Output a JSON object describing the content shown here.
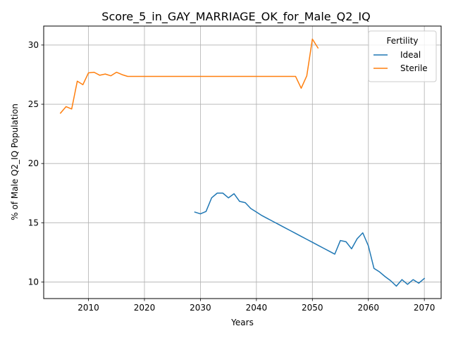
{
  "chart_data": {
    "type": "line",
    "title": "Score_5_in_GAY_MARRIAGE_OK_for_Male_Q2_IQ",
    "xlabel": "Years",
    "ylabel": "% of Male Q2_IQ Population",
    "xlim": [
      2002,
      2073
    ],
    "ylim": [
      8.6,
      31.6
    ],
    "xticks": [
      2010,
      2020,
      2030,
      2040,
      2050,
      2060,
      2070
    ],
    "yticks": [
      10,
      15,
      20,
      25,
      30
    ],
    "grid": true,
    "legend": {
      "title": "Fertility",
      "placement": "top-right"
    },
    "series": [
      {
        "name": "Ideal",
        "color": "#1f77b4",
        "x": [
          2029,
          2030,
          2031,
          2032,
          2033,
          2034,
          2035,
          2036,
          2037,
          2038,
          2039,
          2040,
          2041,
          2042,
          2043,
          2044,
          2045,
          2046,
          2047,
          2048,
          2049,
          2050,
          2051,
          2052,
          2053,
          2054,
          2055,
          2056,
          2057,
          2058,
          2059,
          2060,
          2061,
          2062,
          2063,
          2064,
          2065,
          2066,
          2067,
          2068,
          2069,
          2070
        ],
        "y": [
          15.9,
          15.75,
          15.95,
          17.1,
          17.5,
          17.5,
          17.1,
          17.45,
          16.8,
          16.7,
          16.2,
          15.9,
          15.6,
          15.35,
          15.1,
          14.85,
          14.6,
          14.35,
          14.1,
          13.85,
          13.6,
          13.35,
          13.1,
          12.85,
          12.6,
          12.35,
          13.5,
          13.4,
          12.8,
          13.65,
          14.15,
          13.05,
          11.15,
          10.85,
          10.45,
          10.1,
          9.65,
          10.2,
          9.8,
          10.2,
          9.9,
          10.3
        ]
      },
      {
        "name": "Sterile",
        "color": "#ff7f0e",
        "x": [
          2005,
          2006,
          2007,
          2008,
          2009,
          2010,
          2011,
          2012,
          2013,
          2014,
          2015,
          2016,
          2017,
          2018,
          2019,
          2020,
          2021,
          2022,
          2023,
          2024,
          2025,
          2026,
          2027,
          2028,
          2029,
          2030,
          2031,
          2032,
          2033,
          2034,
          2035,
          2036,
          2037,
          2038,
          2039,
          2040,
          2041,
          2042,
          2043,
          2044,
          2045,
          2046,
          2047,
          2048,
          2049,
          2050,
          2051
        ],
        "y": [
          24.25,
          24.8,
          24.6,
          26.95,
          26.65,
          27.65,
          27.7,
          27.45,
          27.55,
          27.4,
          27.7,
          27.5,
          27.35,
          27.35,
          27.35,
          27.35,
          27.35,
          27.35,
          27.35,
          27.35,
          27.35,
          27.35,
          27.35,
          27.35,
          27.35,
          27.35,
          27.35,
          27.35,
          27.35,
          27.35,
          27.35,
          27.35,
          27.35,
          27.35,
          27.35,
          27.35,
          27.35,
          27.35,
          27.35,
          27.35,
          27.35,
          27.35,
          27.35,
          26.35,
          27.4,
          30.5,
          29.75
        ]
      }
    ]
  }
}
